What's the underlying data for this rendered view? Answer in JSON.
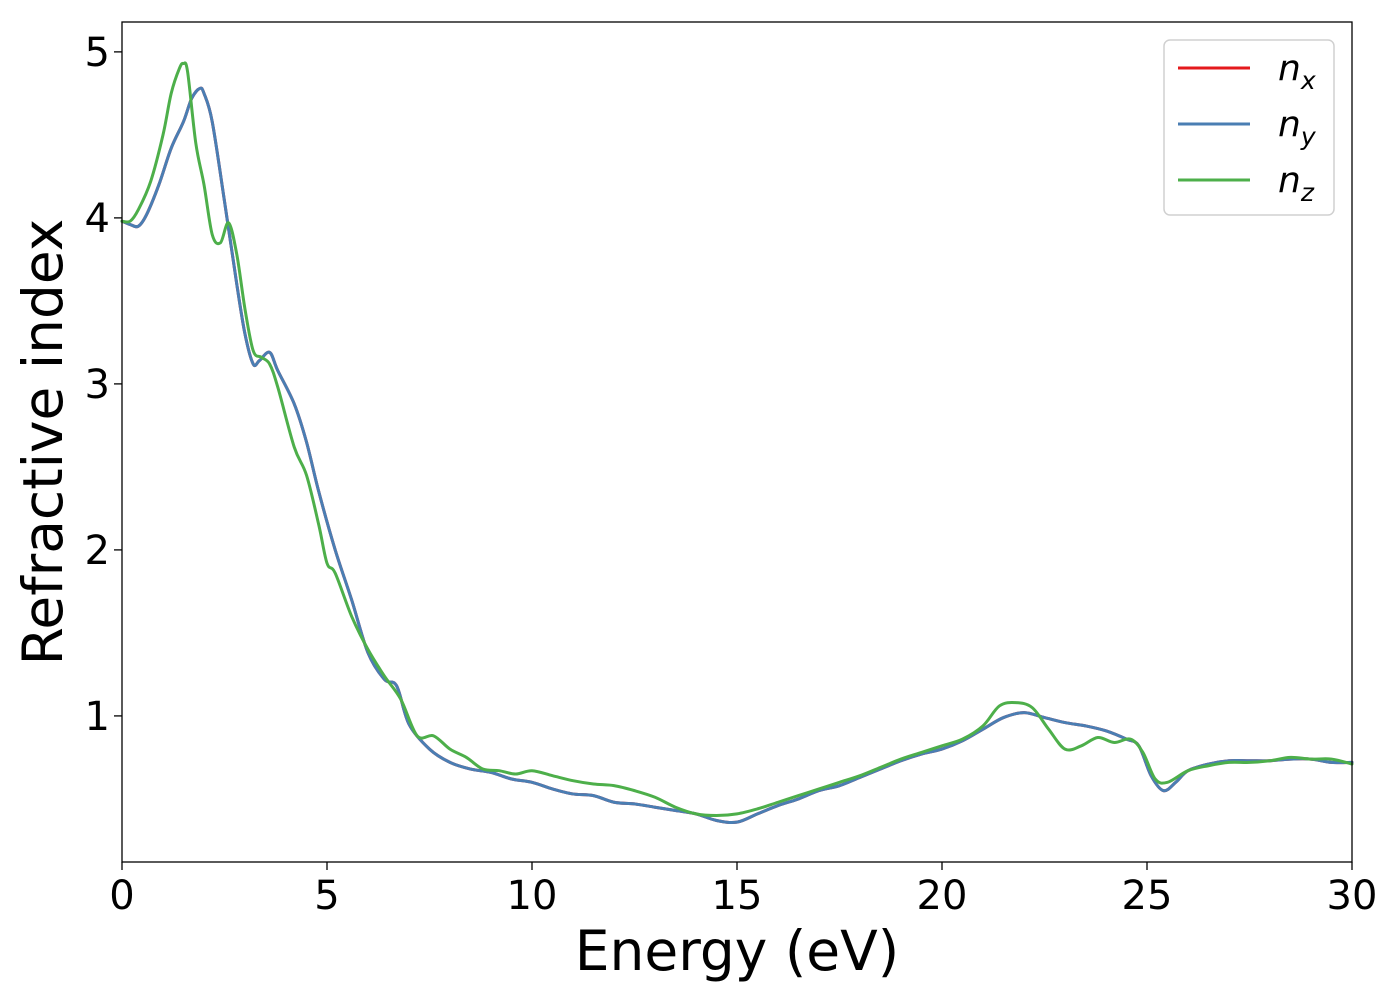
{
  "chart_data": {
    "type": "line",
    "title": "",
    "xlabel": "Energy (eV)",
    "ylabel": "Refractive index",
    "xlim": [
      0,
      30
    ],
    "ylim": [
      0.12,
      5.18
    ],
    "xticks": [
      0,
      5,
      10,
      15,
      20,
      25,
      30
    ],
    "xtick_labels": [
      "0",
      "5",
      "10",
      "15",
      "20",
      "25",
      "30"
    ],
    "yticks": [
      1,
      2,
      3,
      4,
      5
    ],
    "ytick_labels": [
      "1",
      "2",
      "3",
      "4",
      "5"
    ],
    "grid": false,
    "legend_position": "top-right",
    "series": [
      {
        "name": "n",
        "subscript": "x",
        "color": "#e41a1c",
        "x": [
          0,
          0.2,
          0.4,
          0.6,
          0.9,
          1.2,
          1.5,
          1.7,
          1.9,
          2.0,
          2.2,
          2.5,
          2.8,
          3.0,
          3.2,
          3.35,
          3.6,
          3.8,
          4.2,
          4.5,
          4.8,
          5.2,
          5.6,
          6.0,
          6.4,
          6.7,
          7.0,
          7.5,
          8.0,
          8.5,
          9.0,
          9.5,
          10.0,
          10.5,
          11.0,
          11.5,
          12.0,
          12.5,
          13.0,
          13.5,
          14.0,
          14.5,
          15.0,
          15.5,
          16.0,
          16.5,
          17.0,
          17.5,
          18.0,
          18.5,
          19.0,
          19.5,
          20.0,
          20.5,
          21.0,
          21.5,
          22.0,
          22.5,
          23.0,
          23.5,
          24.0,
          24.5,
          24.8,
          25.1,
          25.4,
          25.7,
          26.0,
          26.5,
          27.0,
          27.5,
          28.0,
          28.5,
          29.0,
          29.5,
          30.0
        ],
        "y": [
          3.98,
          3.96,
          3.95,
          4.02,
          4.2,
          4.42,
          4.58,
          4.72,
          4.78,
          4.75,
          4.58,
          4.1,
          3.6,
          3.3,
          3.12,
          3.14,
          3.19,
          3.08,
          2.88,
          2.65,
          2.35,
          2.0,
          1.7,
          1.38,
          1.22,
          1.18,
          0.95,
          0.8,
          0.72,
          0.68,
          0.66,
          0.62,
          0.6,
          0.56,
          0.53,
          0.52,
          0.48,
          0.47,
          0.45,
          0.43,
          0.41,
          0.37,
          0.36,
          0.41,
          0.46,
          0.5,
          0.55,
          0.58,
          0.63,
          0.68,
          0.73,
          0.77,
          0.8,
          0.85,
          0.92,
          0.99,
          1.02,
          0.99,
          0.96,
          0.94,
          0.91,
          0.86,
          0.82,
          0.64,
          0.55,
          0.6,
          0.67,
          0.71,
          0.73,
          0.73,
          0.73,
          0.74,
          0.74,
          0.72,
          0.72
        ]
      },
      {
        "name": "n",
        "subscript": "y",
        "color": "#4a7eb3",
        "x": [
          0,
          0.2,
          0.4,
          0.6,
          0.9,
          1.2,
          1.5,
          1.7,
          1.9,
          2.0,
          2.2,
          2.5,
          2.8,
          3.0,
          3.2,
          3.35,
          3.6,
          3.8,
          4.2,
          4.5,
          4.8,
          5.2,
          5.6,
          6.0,
          6.4,
          6.7,
          7.0,
          7.5,
          8.0,
          8.5,
          9.0,
          9.5,
          10.0,
          10.5,
          11.0,
          11.5,
          12.0,
          12.5,
          13.0,
          13.5,
          14.0,
          14.5,
          15.0,
          15.5,
          16.0,
          16.5,
          17.0,
          17.5,
          18.0,
          18.5,
          19.0,
          19.5,
          20.0,
          20.5,
          21.0,
          21.5,
          22.0,
          22.5,
          23.0,
          23.5,
          24.0,
          24.5,
          24.8,
          25.1,
          25.4,
          25.7,
          26.0,
          26.5,
          27.0,
          27.5,
          28.0,
          28.5,
          29.0,
          29.5,
          30.0
        ],
        "y": [
          3.98,
          3.96,
          3.95,
          4.02,
          4.2,
          4.42,
          4.58,
          4.72,
          4.78,
          4.75,
          4.58,
          4.1,
          3.6,
          3.3,
          3.12,
          3.14,
          3.19,
          3.08,
          2.88,
          2.65,
          2.35,
          2.0,
          1.7,
          1.38,
          1.22,
          1.18,
          0.95,
          0.8,
          0.72,
          0.68,
          0.66,
          0.62,
          0.6,
          0.56,
          0.53,
          0.52,
          0.48,
          0.47,
          0.45,
          0.43,
          0.41,
          0.37,
          0.36,
          0.41,
          0.46,
          0.5,
          0.55,
          0.58,
          0.63,
          0.68,
          0.73,
          0.77,
          0.8,
          0.85,
          0.92,
          0.99,
          1.02,
          0.99,
          0.96,
          0.94,
          0.91,
          0.86,
          0.82,
          0.64,
          0.55,
          0.6,
          0.67,
          0.71,
          0.73,
          0.73,
          0.73,
          0.74,
          0.74,
          0.72,
          0.72
        ]
      },
      {
        "name": "n",
        "subscript": "z",
        "color": "#4daf4a",
        "x": [
          0,
          0.2,
          0.4,
          0.7,
          1.0,
          1.2,
          1.4,
          1.5,
          1.6,
          1.8,
          2.0,
          2.2,
          2.4,
          2.6,
          2.8,
          3.0,
          3.2,
          3.4,
          3.6,
          3.8,
          4.2,
          4.5,
          4.8,
          5.0,
          5.2,
          5.6,
          6.0,
          6.4,
          6.8,
          7.2,
          7.6,
          8.0,
          8.4,
          8.8,
          9.2,
          9.6,
          10.0,
          10.5,
          11.0,
          11.5,
          12.0,
          12.5,
          13.0,
          13.5,
          14.0,
          14.5,
          15.0,
          15.5,
          16.0,
          16.5,
          17.0,
          17.5,
          18.0,
          18.5,
          19.0,
          19.5,
          20.0,
          20.5,
          21.0,
          21.4,
          21.8,
          22.2,
          22.6,
          23.0,
          23.4,
          23.8,
          24.2,
          24.6,
          24.9,
          25.2,
          25.5,
          26.0,
          26.5,
          27.0,
          27.5,
          28.0,
          28.5,
          29.0,
          29.5,
          30.0
        ],
        "y": [
          3.98,
          3.98,
          4.05,
          4.22,
          4.5,
          4.75,
          4.9,
          4.93,
          4.88,
          4.45,
          4.2,
          3.9,
          3.85,
          3.97,
          3.78,
          3.45,
          3.2,
          3.16,
          3.12,
          2.98,
          2.62,
          2.45,
          2.15,
          1.92,
          1.86,
          1.6,
          1.4,
          1.24,
          1.1,
          0.88,
          0.88,
          0.8,
          0.75,
          0.68,
          0.67,
          0.65,
          0.67,
          0.64,
          0.61,
          0.59,
          0.58,
          0.55,
          0.51,
          0.45,
          0.41,
          0.4,
          0.41,
          0.44,
          0.48,
          0.52,
          0.56,
          0.6,
          0.64,
          0.69,
          0.74,
          0.78,
          0.82,
          0.86,
          0.94,
          1.06,
          1.08,
          1.05,
          0.92,
          0.8,
          0.82,
          0.87,
          0.84,
          0.86,
          0.78,
          0.62,
          0.6,
          0.67,
          0.7,
          0.72,
          0.72,
          0.73,
          0.75,
          0.74,
          0.74,
          0.71
        ]
      }
    ]
  }
}
